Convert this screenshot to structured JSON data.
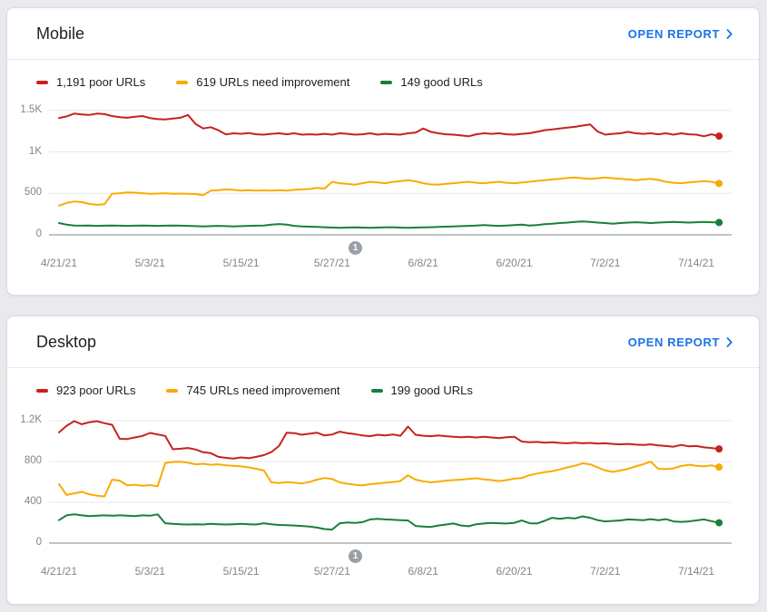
{
  "page": {
    "background_color": "#e8eaed"
  },
  "colors": {
    "poor": "#c5221f",
    "needs_improvement": "#f9ab00",
    "good": "#188038",
    "link": "#1a73e8",
    "axis_label": "#80868b",
    "badge": "#9aa0a6"
  },
  "cards": [
    {
      "title": "Mobile",
      "open_report_label": "OPEN REPORT",
      "legend": [
        {
          "label": "1,191 poor URLs",
          "color": "#c5221f"
        },
        {
          "label": "619 URLs need improvement",
          "color": "#f9ab00"
        },
        {
          "label": "149 good URLs",
          "color": "#188038"
        }
      ],
      "chart_data": {
        "type": "line",
        "x_tick_labels": [
          "4/21/21",
          "5/3/21",
          "5/15/21",
          "5/27/21",
          "6/8/21",
          "6/20/21",
          "7/2/21",
          "7/14/21"
        ],
        "x_tick_interval_days": 12,
        "y_tick_labels": [
          "1.5K",
          "1K",
          "500",
          "0"
        ],
        "y_ticks": [
          1500,
          1000,
          500,
          0
        ],
        "ylim": [
          0,
          1640
        ],
        "grid": true,
        "legend_position": "top",
        "annotation_badge": "1",
        "series": [
          {
            "name": "poor URLs",
            "color": "#c5221f",
            "end_value": 1191,
            "values": [
              1408,
              1428,
              1462,
              1452,
              1445,
              1462,
              1455,
              1432,
              1418,
              1412,
              1425,
              1432,
              1408,
              1395,
              1392,
              1402,
              1412,
              1445,
              1338,
              1282,
              1298,
              1262,
              1210,
              1225,
              1218,
              1228,
              1212,
              1208,
              1218,
              1225,
              1212,
              1225,
              1208,
              1212,
              1208,
              1218,
              1208,
              1225,
              1218,
              1208,
              1212,
              1225,
              1208,
              1218,
              1212,
              1208,
              1225,
              1232,
              1282,
              1242,
              1225,
              1212,
              1208,
              1198,
              1188,
              1212,
              1225,
              1218,
              1225,
              1212,
              1208,
              1218,
              1225,
              1242,
              1262,
              1272,
              1282,
              1292,
              1302,
              1318,
              1332,
              1245,
              1208,
              1218,
              1225,
              1242,
              1225,
              1218,
              1225,
              1212,
              1225,
              1208,
              1225,
              1212,
              1208,
              1188,
              1212,
              1191
            ]
          },
          {
            "name": "URLs need improvement",
            "color": "#f9ab00",
            "end_value": 619,
            "values": [
              352,
              385,
              402,
              395,
              372,
              362,
              368,
              495,
              502,
              512,
              508,
              502,
              495,
              498,
              502,
              495,
              498,
              495,
              492,
              478,
              532,
              538,
              548,
              542,
              532,
              538,
              532,
              536,
              532,
              538,
              532,
              542,
              548,
              552,
              565,
              558,
              638,
              622,
              615,
              605,
              622,
              638,
              632,
              622,
              638,
              648,
              658,
              645,
              622,
              608,
              605,
              615,
              622,
              632,
              640,
              628,
              622,
              632,
              640,
              628,
              622,
              632,
              640,
              650,
              658,
              668,
              675,
              685,
              692,
              682,
              675,
              682,
              692,
              682,
              675,
              668,
              658,
              668,
              675,
              662,
              640,
              628,
              622,
              632,
              640,
              648,
              640,
              619
            ]
          },
          {
            "name": "good URLs",
            "color": "#188038",
            "end_value": 149,
            "values": [
              142,
              122,
              112,
              110,
              112,
              108,
              110,
              112,
              110,
              108,
              110,
              112,
              110,
              108,
              110,
              112,
              110,
              108,
              105,
              102,
              105,
              108,
              105,
              102,
              105,
              108,
              110,
              112,
              122,
              130,
              122,
              108,
              102,
              98,
              95,
              92,
              88,
              85,
              88,
              90,
              88,
              85,
              88,
              90,
              92,
              88,
              85,
              88,
              90,
              92,
              95,
              98,
              102,
              105,
              108,
              112,
              118,
              112,
              108,
              112,
              118,
              122,
              112,
              118,
              128,
              135,
              142,
              148,
              155,
              162,
              155,
              148,
              142,
              135,
              142,
              148,
              152,
              148,
              142,
              148,
              152,
              155,
              152,
              148,
              152,
              155,
              152,
              149
            ]
          }
        ]
      }
    },
    {
      "title": "Desktop",
      "open_report_label": "OPEN REPORT",
      "legend": [
        {
          "label": "923 poor URLs",
          "color": "#c5221f"
        },
        {
          "label": "745 URLs need improvement",
          "color": "#f9ab00"
        },
        {
          "label": "199 good URLs",
          "color": "#188038"
        }
      ],
      "chart_data": {
        "type": "line",
        "x_tick_labels": [
          "4/21/21",
          "5/3/21",
          "5/15/21",
          "5/27/21",
          "6/8/21",
          "6/20/21",
          "7/2/21",
          "7/14/21"
        ],
        "x_tick_interval_days": 12,
        "y_tick_labels": [
          "1.2K",
          "800",
          "400",
          "0"
        ],
        "y_ticks": [
          1200,
          800,
          400,
          0
        ],
        "ylim": [
          0,
          1333
        ],
        "grid": true,
        "legend_position": "top",
        "annotation_badge": "1",
        "series": [
          {
            "name": "poor URLs",
            "color": "#c5221f",
            "end_value": 923,
            "values": [
              1085,
              1150,
              1195,
              1165,
              1185,
              1195,
              1175,
              1160,
              1022,
              1020,
              1035,
              1050,
              1080,
              1065,
              1050,
              920,
              925,
              932,
              918,
              890,
              882,
              845,
              835,
              828,
              840,
              832,
              845,
              862,
              892,
              952,
              1082,
              1078,
              1062,
              1072,
              1082,
              1055,
              1065,
              1092,
              1078,
              1068,
              1055,
              1048,
              1062,
              1055,
              1065,
              1052,
              1142,
              1062,
              1052,
              1048,
              1055,
              1048,
              1042,
              1038,
              1042,
              1035,
              1042,
              1035,
              1028,
              1038,
              1042,
              995,
              988,
              992,
              985,
              988,
              982,
              978,
              985,
              978,
              982,
              975,
              978,
              972,
              968,
              972,
              965,
              962,
              968,
              958,
              952,
              945,
              962,
              948,
              952,
              938,
              932,
              923
            ]
          },
          {
            "name": "URLs need improvement",
            "color": "#f9ab00",
            "end_value": 745,
            "values": [
              578,
              472,
              488,
              502,
              478,
              465,
              458,
              622,
              612,
              565,
              572,
              562,
              568,
              558,
              785,
              795,
              798,
              788,
              772,
              778,
              768,
              772,
              762,
              758,
              752,
              742,
              728,
              712,
              595,
              588,
              598,
              592,
              585,
              598,
              622,
              638,
              628,
              595,
              582,
              572,
              565,
              578,
              585,
              592,
              598,
              608,
              665,
              622,
              605,
              595,
              602,
              612,
              618,
              622,
              628,
              635,
              625,
              618,
              608,
              618,
              632,
              638,
              665,
              682,
              695,
              705,
              722,
              742,
              758,
              782,
              772,
              742,
              712,
              698,
              712,
              728,
              752,
              772,
              798,
              728,
              725,
              732,
              755,
              768,
              758,
              752,
              762,
              745
            ]
          },
          {
            "name": "good URLs",
            "color": "#188038",
            "end_value": 199,
            "values": [
              225,
              272,
              282,
              272,
              265,
              268,
              272,
              268,
              272,
              268,
              265,
              272,
              268,
              282,
              195,
              188,
              185,
              182,
              185,
              182,
              188,
              185,
              182,
              185,
              188,
              185,
              182,
              195,
              185,
              178,
              175,
              172,
              168,
              162,
              152,
              138,
              132,
              195,
              202,
              198,
              205,
              232,
              238,
              232,
              228,
              225,
              222,
              168,
              162,
              158,
              172,
              182,
              192,
              172,
              165,
              185,
              192,
              198,
              195,
              192,
              198,
              222,
              195,
              192,
              218,
              248,
              238,
              248,
              242,
              262,
              248,
              225,
              212,
              218,
              222,
              232,
              228,
              225,
              235,
              225,
              235,
              212,
              208,
              212,
              222,
              232,
              215,
              199
            ]
          }
        ]
      }
    }
  ]
}
